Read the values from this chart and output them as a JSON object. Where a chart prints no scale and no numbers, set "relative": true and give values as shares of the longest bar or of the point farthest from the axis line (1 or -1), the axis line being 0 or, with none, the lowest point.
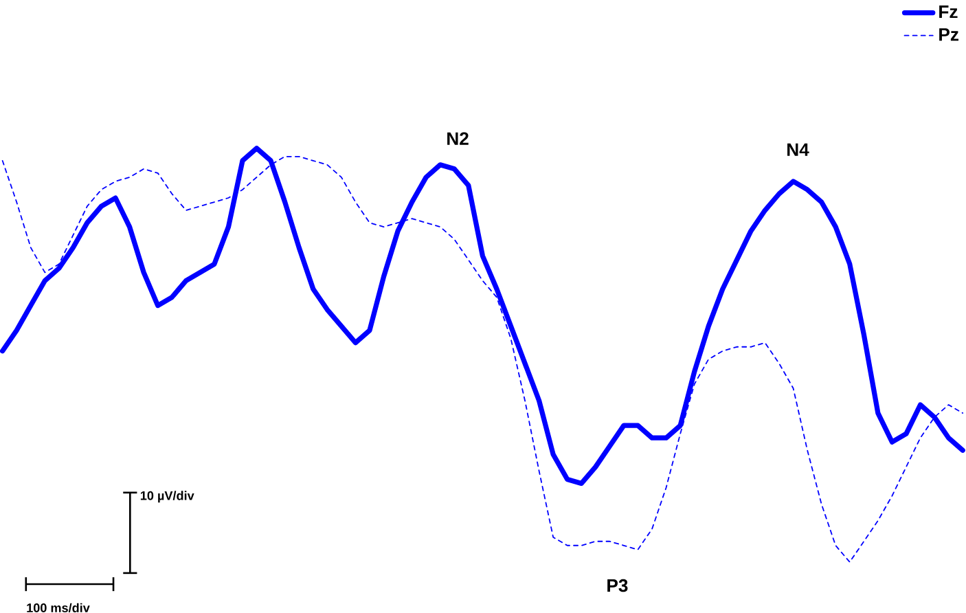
{
  "chart_data": {
    "type": "line",
    "relative": true,
    "categories": [
      null,
      null,
      null,
      null,
      null,
      null,
      null,
      null,
      null,
      null,
      null,
      null,
      null,
      null,
      null,
      null,
      null,
      null,
      null,
      null,
      null,
      null,
      null,
      null,
      null,
      null,
      null,
      null,
      null,
      null,
      null,
      null,
      null,
      null,
      null,
      null,
      null,
      null,
      null,
      null,
      null,
      null,
      null,
      null,
      null,
      null,
      null,
      null,
      null,
      null,
      null,
      null,
      null,
      null,
      null,
      null,
      null,
      null,
      null,
      null,
      null,
      null,
      null,
      null,
      null,
      null,
      null,
      null,
      null
    ],
    "series": [
      {
        "name": "Fz",
        "color": "#0000ff",
        "line_style": "solid",
        "values": [
          0.51,
          0.56,
          0.62,
          0.68,
          0.71,
          0.76,
          0.82,
          0.86,
          0.88,
          0.81,
          0.7,
          0.62,
          0.64,
          0.68,
          0.7,
          0.72,
          0.81,
          0.97,
          1.0,
          0.97,
          0.87,
          0.76,
          0.66,
          0.61,
          0.57,
          0.53,
          0.56,
          0.69,
          0.8,
          0.87,
          0.93,
          0.96,
          0.95,
          0.91,
          0.74,
          0.66,
          0.57,
          0.48,
          0.39,
          0.26,
          0.2,
          0.19,
          0.23,
          0.28,
          0.33,
          0.33,
          0.3,
          0.3,
          0.33,
          0.46,
          0.57,
          0.66,
          0.73,
          0.8,
          0.85,
          0.89,
          0.92,
          0.9,
          0.87,
          0.81,
          0.72,
          0.55,
          0.36,
          0.29,
          0.31,
          0.38,
          0.35,
          0.3,
          0.27
        ]
      },
      {
        "name": "Pz",
        "color": "#0000ff",
        "line_style": "dashed",
        "values": [
          0.97,
          0.87,
          0.76,
          0.7,
          0.72,
          0.79,
          0.86,
          0.9,
          0.92,
          0.93,
          0.95,
          0.94,
          0.89,
          0.85,
          0.86,
          0.87,
          0.88,
          0.9,
          0.93,
          0.96,
          0.98,
          0.98,
          0.97,
          0.96,
          0.93,
          0.87,
          0.82,
          0.81,
          0.82,
          0.83,
          0.82,
          0.81,
          0.78,
          0.73,
          0.68,
          0.64,
          0.54,
          0.39,
          0.22,
          0.06,
          0.04,
          0.04,
          0.05,
          0.05,
          0.04,
          0.03,
          0.08,
          0.18,
          0.31,
          0.43,
          0.49,
          0.51,
          0.52,
          0.52,
          0.53,
          0.48,
          0.42,
          0.27,
          0.14,
          0.04,
          0.0,
          0.05,
          0.1,
          0.16,
          0.23,
          0.3,
          0.35,
          0.38,
          0.36
        ]
      }
    ],
    "legend": "top right",
    "annotations": [
      "N2",
      "P3",
      "N4",
      "10 µV/div",
      "100 ms/div"
    ]
  }
}
